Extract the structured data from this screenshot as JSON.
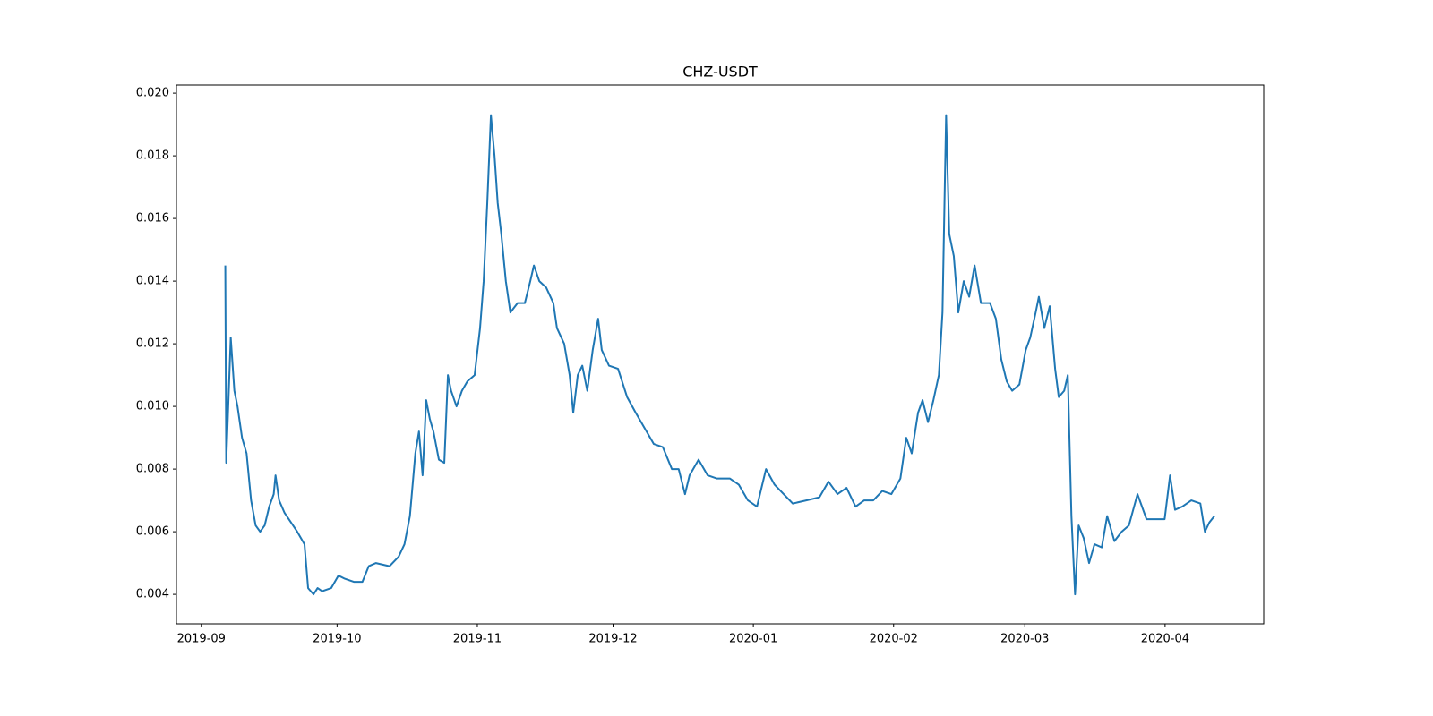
{
  "chart_data": {
    "type": "line",
    "title": "CHZ-USDT",
    "x": [
      5.3,
      5.5,
      6.5,
      7.3,
      8,
      9,
      10,
      11,
      12,
      13,
      14,
      15,
      16,
      16.4,
      17.2,
      18.4,
      19.8,
      21.2,
      22.8,
      23.6,
      24.8,
      25.7,
      26.7,
      28.7,
      30.3,
      31.7,
      33.7,
      35.6,
      37,
      38.6,
      41.6,
      43.6,
      44.9,
      46.1,
      47.3,
      48.1,
      48.9,
      49.7,
      50.5,
      51.3,
      52.5,
      53.7,
      54.5,
      55.2,
      56.4,
      57.6,
      58.8,
      60.4,
      61.6,
      62.4,
      63.2,
      64,
      64.8,
      65.5,
      66.3,
      67.3,
      68.3,
      69.9,
      71.5,
      72.7,
      73.5,
      74.7,
      76.2,
      77.8,
      78.6,
      80.2,
      81.4,
      82.2,
      83.2,
      84.2,
      85.3,
      86.5,
      87.7,
      88.5,
      90.1,
      92.1,
      94.1,
      96,
      98,
      100,
      102,
      104,
      105.5,
      106.9,
      107.9,
      109.9,
      111.9,
      113.9,
      116.8,
      118.8,
      120.8,
      122.8,
      124.8,
      126.7,
      128.7,
      130.7,
      133.7,
      136.6,
      138.6,
      140.6,
      142.6,
      144.6,
      146.5,
      148.5,
      150.5,
      152.5,
      154.5,
      155.8,
      157,
      158.4,
      159.4,
      160.6,
      161.8,
      163,
      163.8,
      164.6,
      165.3,
      166.3,
      167.3,
      168.5,
      169.7,
      170.9,
      172.3,
      174.3,
      175.6,
      176.8,
      178,
      179.2,
      180.8,
      182.2,
      183.2,
      184.4,
      185.1,
      186.3,
      187.5,
      188.7,
      189.5,
      190.7,
      191.5,
      192.3,
      193.1,
      193.9,
      195,
      196.2,
      197.4,
      199,
      200.2,
      201.8,
      203.4,
      205,
      206.9,
      208.9,
      210.9,
      212.9,
      214.1,
      215.2,
      216.8,
      218.8,
      220.8,
      221.8,
      222.8,
      223.9
    ],
    "series": [
      {
        "color": "#1f77b4",
        "values": [
          0.0145,
          0.0082,
          0.0122,
          0.0105,
          0.01,
          0.009,
          0.0085,
          0.007,
          0.0062,
          0.006,
          0.0062,
          0.0068,
          0.0072,
          0.0078,
          0.007,
          0.0066,
          0.0063,
          0.006,
          0.0056,
          0.0042,
          0.004,
          0.0042,
          0.0041,
          0.0042,
          0.0046,
          0.0045,
          0.0044,
          0.0044,
          0.0049,
          0.005,
          0.0049,
          0.0052,
          0.0056,
          0.0065,
          0.0085,
          0.0092,
          0.0078,
          0.0102,
          0.0096,
          0.0092,
          0.0083,
          0.0082,
          0.011,
          0.0105,
          0.01,
          0.0105,
          0.0108,
          0.011,
          0.0125,
          0.014,
          0.0165,
          0.0193,
          0.018,
          0.0165,
          0.0155,
          0.014,
          0.013,
          0.0133,
          0.0133,
          0.014,
          0.0145,
          0.014,
          0.0138,
          0.0133,
          0.0125,
          0.012,
          0.011,
          0.0098,
          0.011,
          0.0113,
          0.0105,
          0.0118,
          0.0128,
          0.0118,
          0.0113,
          0.0112,
          0.0103,
          0.0098,
          0.0093,
          0.0088,
          0.0087,
          0.008,
          0.008,
          0.0072,
          0.0078,
          0.0083,
          0.0078,
          0.0077,
          0.0077,
          0.0075,
          0.007,
          0.0068,
          0.008,
          0.0075,
          0.0072,
          0.0069,
          0.007,
          0.0071,
          0.0076,
          0.0072,
          0.0074,
          0.0068,
          0.007,
          0.007,
          0.0073,
          0.0072,
          0.0077,
          0.009,
          0.0085,
          0.0098,
          0.0102,
          0.0095,
          0.0102,
          0.011,
          0.013,
          0.0193,
          0.0155,
          0.0148,
          0.013,
          0.014,
          0.0135,
          0.0145,
          0.0133,
          0.0133,
          0.0128,
          0.0115,
          0.0108,
          0.0105,
          0.0107,
          0.0118,
          0.0122,
          0.013,
          0.0135,
          0.0125,
          0.0132,
          0.0112,
          0.0103,
          0.0105,
          0.011,
          0.0065,
          0.004,
          0.0062,
          0.0058,
          0.005,
          0.0056,
          0.0055,
          0.0065,
          0.0057,
          0.006,
          0.0062,
          0.0072,
          0.0064,
          0.0064,
          0.0064,
          0.0078,
          0.0067,
          0.0068,
          0.007,
          0.0069,
          0.006,
          0.0063,
          0.0065
        ]
      }
    ],
    "xlim": [
      -5.5,
      234.8
    ],
    "xticks": [
      {
        "value": 0,
        "label": "2019-09"
      },
      {
        "value": 30,
        "label": "2019-10"
      },
      {
        "value": 61,
        "label": "2019-11"
      },
      {
        "value": 91,
        "label": "2019-12"
      },
      {
        "value": 122,
        "label": "2020-01"
      },
      {
        "value": 153,
        "label": "2020-02"
      },
      {
        "value": 182,
        "label": "2020-03"
      },
      {
        "value": 213,
        "label": "2020-04"
      }
    ],
    "ylim": [
      0.00306,
      0.02026
    ],
    "yticks": [
      {
        "value": 0.004,
        "label": "0.004"
      },
      {
        "value": 0.006,
        "label": "0.006"
      },
      {
        "value": 0.008,
        "label": "0.008"
      },
      {
        "value": 0.01,
        "label": "0.010"
      },
      {
        "value": 0.012,
        "label": "0.012"
      },
      {
        "value": 0.014,
        "label": "0.014"
      },
      {
        "value": 0.016,
        "label": "0.016"
      },
      {
        "value": 0.018,
        "label": "0.018"
      },
      {
        "value": 0.02,
        "label": "0.020"
      }
    ],
    "grid": false
  }
}
